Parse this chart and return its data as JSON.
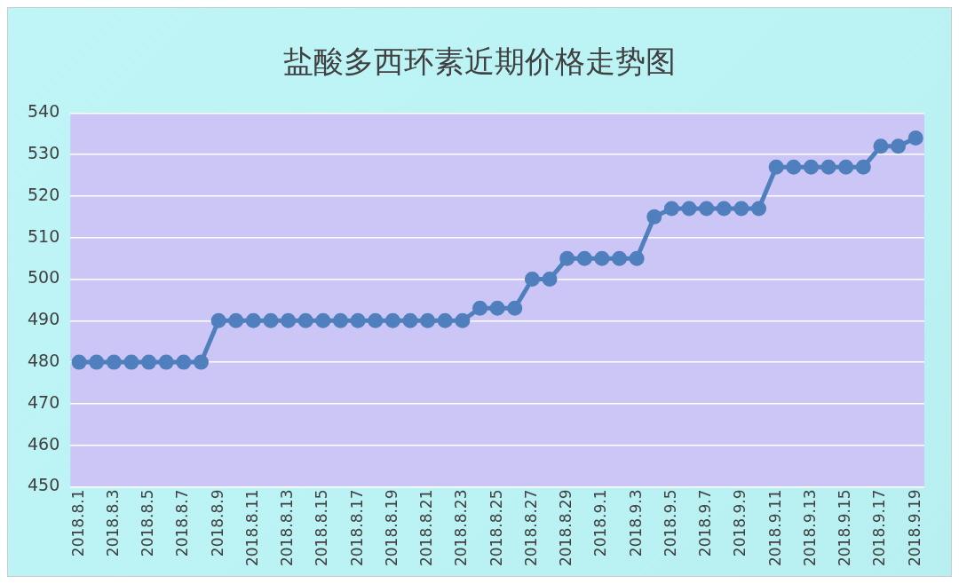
{
  "chart_data": {
    "type": "line",
    "title": "盐酸多西环素近期价格走势图",
    "categories": [
      "2018.8.1",
      null,
      "2018.8.3",
      null,
      "2018.8.5",
      null,
      "2018.8.7",
      null,
      "2018.8.9",
      null,
      "2018.8.11",
      null,
      "2018.8.13",
      null,
      "2018.8.15",
      null,
      "2018.8.17",
      null,
      "2018.8.19",
      null,
      "2018.8.21",
      null,
      "2018.8.23",
      null,
      "2018.8.25",
      null,
      "2018.8.27",
      null,
      "2018.8.29",
      null,
      "2018.9.1",
      null,
      "2018.9.3",
      null,
      "2018.9.5",
      null,
      "2018.9.7",
      null,
      "2018.9.9",
      null,
      "2018.9.11",
      null,
      "2018.9.13",
      null,
      "2018.9.15",
      null,
      "2018.9.17",
      null,
      "2018.9.19"
    ],
    "series": [
      {
        "color": "#4f7fbd",
        "values": [
          480,
          480,
          480,
          480,
          480,
          480,
          480,
          480,
          490,
          490,
          490,
          490,
          490,
          490,
          490,
          490,
          490,
          490,
          490,
          490,
          490,
          490,
          490,
          493,
          493,
          493,
          500,
          500,
          505,
          505,
          505,
          505,
          505,
          515,
          517,
          517,
          517,
          517,
          517,
          517,
          527,
          527,
          527,
          527,
          527,
          527,
          532,
          532,
          534
        ]
      }
    ],
    "ylim": [
      450,
      540
    ],
    "yticks": [
      450,
      460,
      470,
      480,
      490,
      500,
      510,
      520,
      530,
      540
    ],
    "grid": "y",
    "legend": false,
    "marker": "circle",
    "line_style": "solid"
  }
}
